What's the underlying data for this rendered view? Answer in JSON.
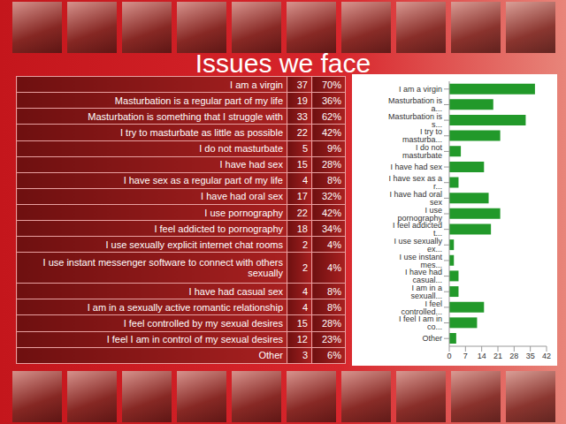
{
  "title": "Issues we face",
  "table": {
    "rows": [
      [
        "I am a virgin",
        "37",
        "70%"
      ],
      [
        "Masturbation is a regular part of my life",
        "19",
        "36%"
      ],
      [
        "Masturbation is something that I struggle with",
        "33",
        "62%"
      ],
      [
        "I try to masturbate as little as possible",
        "22",
        "42%"
      ],
      [
        "I do not masturbate",
        "5",
        "9%"
      ],
      [
        "I have had sex",
        "15",
        "28%"
      ],
      [
        "I have sex as a regular part of my life",
        "4",
        "8%"
      ],
      [
        "I have had oral sex",
        "17",
        "32%"
      ],
      [
        "I use pornography",
        "22",
        "42%"
      ],
      [
        "I feel addicted to pornography",
        "18",
        "34%"
      ],
      [
        "I use sexually explicit internet chat rooms",
        "2",
        "4%"
      ],
      [
        "I use instant messenger software to connect with others sexually",
        "2",
        "4%"
      ],
      [
        "I have had casual sex",
        "4",
        "8%"
      ],
      [
        "I am in a sexually active romantic relationship",
        "4",
        "8%"
      ],
      [
        "I feel controlled by my sexual desires",
        "15",
        "28%"
      ],
      [
        "I feel I am in control of my sexual desires",
        "12",
        "23%"
      ],
      [
        "Other",
        "3",
        "6%"
      ]
    ]
  },
  "chart_data": {
    "type": "bar",
    "orientation": "horizontal",
    "categories": [
      "I am a virgin",
      "Masturbation is a...",
      "Masturbation is s...",
      "I try to masturba...",
      "I do not masturbate",
      "I have had sex",
      "I have sex as a r...",
      "I have had oral sex",
      "I use pornography",
      "I feel addicted t...",
      "I use sexually ex...",
      "I use instant mes...",
      "I have had casual...",
      "I am in a sexuall...",
      "I feel controlled...",
      "I feel I am in co...",
      "Other"
    ],
    "values": [
      37,
      19,
      33,
      22,
      5,
      15,
      4,
      17,
      22,
      18,
      2,
      2,
      4,
      4,
      15,
      12,
      3
    ],
    "color": "#22992a",
    "xlim": [
      0,
      42
    ],
    "xticks": [
      0,
      7,
      14,
      21,
      28,
      35,
      42
    ],
    "grid": false
  }
}
